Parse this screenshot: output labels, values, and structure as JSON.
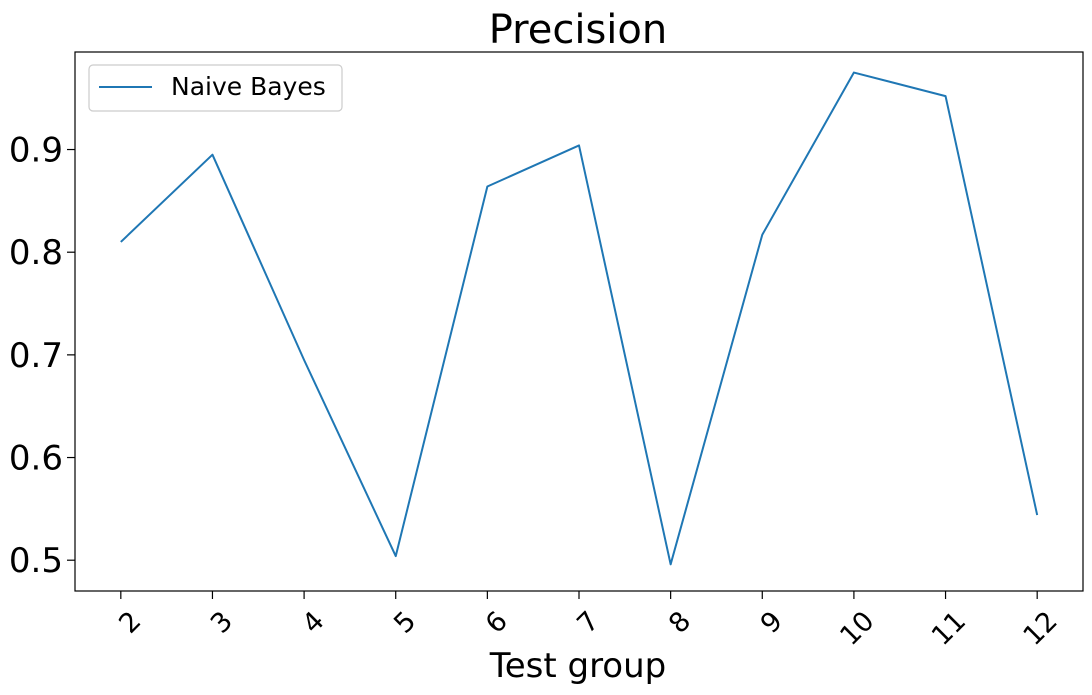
{
  "chart_data": {
    "type": "line",
    "title": "Precision",
    "xlabel": "Test group",
    "ylabel": "",
    "x": [
      2,
      3,
      4,
      5,
      6,
      7,
      8,
      9,
      10,
      11,
      12
    ],
    "x_tick_labels": [
      "2",
      "3",
      "4",
      "5",
      "6",
      "7",
      "8",
      "9",
      "10",
      "11",
      "12"
    ],
    "y_tick_labels": [
      "0.5",
      "0.6",
      "0.7",
      "0.8",
      "0.9"
    ],
    "yticks": [
      0.5,
      0.6,
      0.7,
      0.8,
      0.9
    ],
    "ylim": [
      0.47,
      0.995
    ],
    "xlim": [
      1.5,
      12.5
    ],
    "grid": false,
    "legend_position": "top-left",
    "series": [
      {
        "name": "Naive Bayes",
        "color": "#1f77b4",
        "values": [
          0.81,
          0.895,
          0.695,
          0.504,
          0.864,
          0.904,
          0.496,
          0.817,
          0.975,
          0.952,
          0.544
        ]
      }
    ]
  }
}
